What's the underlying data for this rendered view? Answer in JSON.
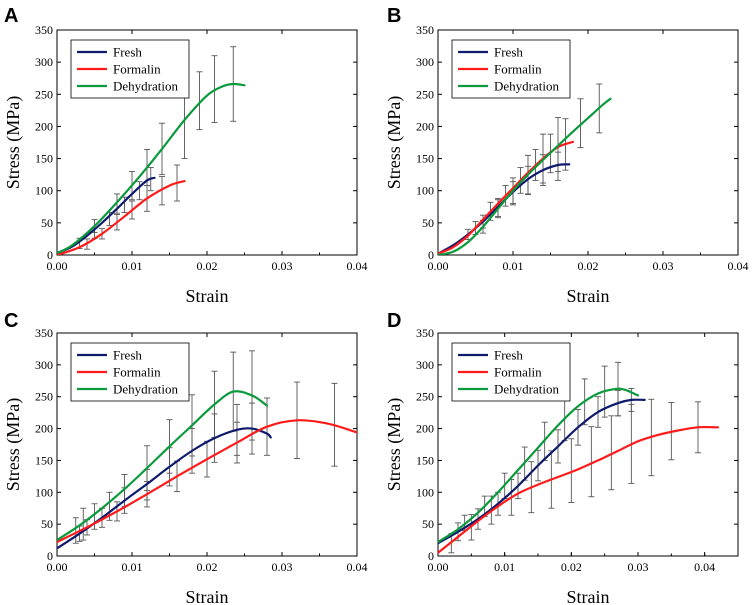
{
  "colors": {
    "Fresh": "#0f1a6e",
    "Formalin": "#ff1a1a",
    "Dehydration": "#0a9a3c"
  },
  "chart_data": [
    {
      "panel": "A",
      "type": "line",
      "xlabel": "Strain",
      "ylabel": "Stress (MPa)",
      "xlim": [
        0,
        0.04
      ],
      "ylim": [
        0,
        350
      ],
      "xticks": [
        "0.00",
        "0.01",
        "0.02",
        "0.03",
        "0.04"
      ],
      "yticks": [
        "0",
        "50",
        "100",
        "150",
        "200",
        "250",
        "300",
        "350"
      ],
      "legend": [
        "Fresh",
        "Formalin",
        "Dehydration"
      ],
      "series": [
        {
          "name": "Fresh",
          "x": [
            0,
            0.002,
            0.004,
            0.006,
            0.008,
            0.01,
            0.012,
            0.013
          ],
          "y": [
            3,
            13,
            30,
            50,
            72,
            95,
            116,
            120
          ],
          "errors": [
            [
              0.003,
              18,
              8
            ],
            [
              0.005,
              34,
              8
            ],
            [
              0.007,
              56,
              10
            ],
            [
              0.009,
              78,
              12
            ],
            [
              0.011,
              100,
              14
            ],
            [
              0.0125,
              118,
              18
            ]
          ]
        },
        {
          "name": "Formalin",
          "x": [
            0,
            0.003,
            0.006,
            0.009,
            0.012,
            0.015,
            0.017
          ],
          "y": [
            0,
            12,
            33,
            60,
            88,
            108,
            115
          ],
          "errors": [
            [
              0.004,
              17,
              8
            ],
            [
              0.006,
              33,
              8
            ],
            [
              0.008,
              51,
              12
            ],
            [
              0.01,
              70,
              14
            ],
            [
              0.012,
              88,
              20
            ],
            [
              0.014,
              100,
              22
            ],
            [
              0.016,
              112,
              28
            ]
          ]
        },
        {
          "name": "Dehydration",
          "x": [
            0,
            0.002,
            0.005,
            0.008,
            0.011,
            0.014,
            0.017,
            0.02,
            0.022,
            0.0235,
            0.025
          ],
          "y": [
            3,
            15,
            45,
            82,
            122,
            165,
            210,
            248,
            262,
            266,
            264
          ],
          "errors": [
            [
              0.005,
              45,
              10
            ],
            [
              0.008,
              80,
              15
            ],
            [
              0.01,
              108,
              22
            ],
            [
              0.012,
              136,
              28
            ],
            [
              0.014,
              165,
              40
            ],
            [
              0.017,
              205,
              55
            ],
            [
              0.019,
              240,
              45
            ],
            [
              0.021,
              258,
              52
            ],
            [
              0.0235,
              266,
              58
            ]
          ]
        }
      ]
    },
    {
      "panel": "B",
      "type": "line",
      "xlabel": "Strain",
      "ylabel": "Stress (MPa)",
      "xlim": [
        0,
        0.04
      ],
      "ylim": [
        0,
        350
      ],
      "xticks": [
        "0.00",
        "0.01",
        "0.02",
        "0.03",
        "0.04"
      ],
      "yticks": [
        "0",
        "50",
        "100",
        "150",
        "200",
        "250",
        "300",
        "350"
      ],
      "legend": [
        "Fresh",
        "Formalin",
        "Dehydration"
      ],
      "series": [
        {
          "name": "Fresh",
          "x": [
            0,
            0.002,
            0.004,
            0.006,
            0.008,
            0.01,
            0.012,
            0.014,
            0.016,
            0.0175
          ],
          "y": [
            2,
            15,
            32,
            52,
            75,
            98,
            118,
            132,
            140,
            141
          ],
          "errors": [
            [
              0.004,
              32,
              8
            ],
            [
              0.006,
              52,
              10
            ],
            [
              0.008,
              74,
              14
            ],
            [
              0.01,
              96,
              18
            ],
            [
              0.012,
              116,
              22
            ],
            [
              0.014,
              132,
              24
            ],
            [
              0.016,
              138,
              22
            ]
          ]
        },
        {
          "name": "Formalin",
          "x": [
            0,
            0.002,
            0.004,
            0.006,
            0.008,
            0.01,
            0.012,
            0.014,
            0.016,
            0.018
          ],
          "y": [
            2,
            12,
            30,
            55,
            80,
            104,
            128,
            150,
            168,
            176
          ],
          "errors": [
            [
              0.005,
              42,
              10
            ],
            [
              0.007,
              68,
              14
            ],
            [
              0.009,
              92,
              16
            ],
            [
              0.011,
              116,
              20
            ],
            [
              0.013,
              140,
              24
            ],
            [
              0.015,
              158,
              30
            ],
            [
              0.017,
              172,
              40
            ]
          ]
        },
        {
          "name": "Dehydration",
          "x": [
            0,
            0.002,
            0.004,
            0.006,
            0.008,
            0.01,
            0.012,
            0.014,
            0.016,
            0.018,
            0.02,
            0.022,
            0.023
          ],
          "y": [
            0,
            5,
            20,
            44,
            72,
            100,
            125,
            148,
            170,
            192,
            213,
            234,
            243
          ],
          "errors": [
            [
              0.006,
              44,
              10
            ],
            [
              0.008,
              72,
              14
            ],
            [
              0.01,
              100,
              20
            ],
            [
              0.012,
              125,
              30
            ],
            [
              0.014,
              150,
              38
            ],
            [
              0.016,
              172,
              42
            ],
            [
              0.019,
              205,
              38
            ],
            [
              0.0215,
              228,
              38
            ]
          ]
        }
      ]
    },
    {
      "panel": "C",
      "type": "line",
      "xlabel": "Strain",
      "ylabel": "Stress (MPa)",
      "xlim": [
        0,
        0.04
      ],
      "ylim": [
        0,
        350
      ],
      "xticks": [
        "0.00",
        "0.01",
        "0.02",
        "0.03",
        "0.04"
      ],
      "yticks": [
        "0",
        "50",
        "100",
        "150",
        "200",
        "250",
        "300",
        "350"
      ],
      "legend": [
        "Fresh",
        "Formalin",
        "Dehydration"
      ],
      "series": [
        {
          "name": "Fresh",
          "x": [
            0,
            0.003,
            0.006,
            0.009,
            0.012,
            0.015,
            0.018,
            0.021,
            0.024,
            0.026,
            0.028,
            0.0285
          ],
          "y": [
            12,
            35,
            60,
            87,
            113,
            140,
            165,
            185,
            198,
            200,
            192,
            186
          ],
          "errors": [
            [
              0.003,
              35,
              12
            ],
            [
              0.006,
              60,
              15
            ],
            [
              0.009,
              87,
              20
            ],
            [
              0.012,
              112,
              24
            ],
            [
              0.015,
              140,
              30
            ],
            [
              0.018,
              165,
              35
            ],
            [
              0.021,
              185,
              38
            ],
            [
              0.024,
              198,
              40
            ],
            [
              0.026,
              200,
              40
            ]
          ]
        },
        {
          "name": "Formalin",
          "x": [
            0,
            0.004,
            0.008,
            0.012,
            0.016,
            0.02,
            0.024,
            0.028,
            0.032,
            0.036,
            0.04
          ],
          "y": [
            22,
            45,
            70,
            97,
            125,
            152,
            178,
            203,
            213,
            208,
            194
          ],
          "errors": [
            [
              0.004,
              45,
              12
            ],
            [
              0.008,
              70,
              15
            ],
            [
              0.012,
              97,
              20
            ],
            [
              0.016,
              125,
              24
            ],
            [
              0.02,
              152,
              28
            ],
            [
              0.024,
              178,
              32
            ],
            [
              0.028,
              203,
              45
            ],
            [
              0.032,
              213,
              60
            ],
            [
              0.037,
              206,
              65
            ]
          ]
        },
        {
          "name": "Dehydration",
          "x": [
            0,
            0.003,
            0.006,
            0.009,
            0.012,
            0.015,
            0.018,
            0.021,
            0.0235,
            0.026,
            0.028
          ],
          "y": [
            25,
            48,
            75,
            105,
            138,
            172,
            205,
            238,
            258,
            252,
            236
          ],
          "errors": [
            [
              0.0025,
              40,
              20
            ],
            [
              0.0035,
              50,
              25
            ],
            [
              0.005,
              62,
              20
            ],
            [
              0.007,
              78,
              22
            ],
            [
              0.009,
              103,
              25
            ],
            [
              0.012,
              138,
              35
            ],
            [
              0.015,
              172,
              42
            ],
            [
              0.018,
              205,
              48
            ],
            [
              0.021,
              238,
              52
            ],
            [
              0.0235,
              258,
              62
            ],
            [
              0.026,
              252,
              70
            ]
          ]
        }
      ]
    },
    {
      "panel": "D",
      "type": "line",
      "xlabel": "Strain",
      "ylabel": "Stress (MPa)",
      "xlim": [
        0,
        0.045
      ],
      "ylim": [
        0,
        350
      ],
      "xticks": [
        "0.00",
        "0.01",
        "0.02",
        "0.03",
        "0.04"
      ],
      "yticks": [
        "0",
        "50",
        "100",
        "150",
        "200",
        "250",
        "300",
        "350"
      ],
      "legend": [
        "Fresh",
        "Formalin",
        "Dehydration"
      ],
      "series": [
        {
          "name": "Fresh",
          "x": [
            0,
            0.003,
            0.006,
            0.009,
            0.012,
            0.015,
            0.018,
            0.021,
            0.024,
            0.027,
            0.029,
            0.031
          ],
          "y": [
            20,
            38,
            58,
            82,
            110,
            142,
            172,
            202,
            226,
            240,
            245,
            245
          ],
          "errors": [
            [
              0.003,
              38,
              14
            ],
            [
              0.006,
              58,
              16
            ],
            [
              0.009,
              82,
              18
            ],
            [
              0.012,
              110,
              20
            ],
            [
              0.015,
              142,
              24
            ],
            [
              0.018,
              172,
              26
            ],
            [
              0.021,
              202,
              28
            ],
            [
              0.024,
              226,
              24
            ],
            [
              0.027,
              240,
              20
            ],
            [
              0.029,
              245,
              18
            ]
          ]
        },
        {
          "name": "Formalin",
          "x": [
            0,
            0.003,
            0.006,
            0.009,
            0.012,
            0.015,
            0.018,
            0.021,
            0.024,
            0.027,
            0.03,
            0.033,
            0.036,
            0.039,
            0.042
          ],
          "y": [
            5,
            30,
            55,
            78,
            98,
            112,
            124,
            136,
            150,
            165,
            180,
            190,
            197,
            202,
            202
          ],
          "errors": [
            [
              0.002,
              20,
              15
            ],
            [
              0.005,
              45,
              20
            ],
            [
              0.008,
              72,
              22
            ],
            [
              0.011,
              92,
              28
            ],
            [
              0.014,
              108,
              40
            ],
            [
              0.017,
              120,
              45
            ],
            [
              0.02,
              134,
              50
            ],
            [
              0.023,
              148,
              55
            ],
            [
              0.026,
              162,
              58
            ],
            [
              0.029,
              176,
              62
            ],
            [
              0.032,
              186,
              60
            ],
            [
              0.035,
              196,
              45
            ],
            [
              0.039,
              202,
              40
            ]
          ]
        },
        {
          "name": "Dehydration",
          "x": [
            0,
            0.003,
            0.006,
            0.009,
            0.012,
            0.015,
            0.018,
            0.021,
            0.024,
            0.0265,
            0.028,
            0.03
          ],
          "y": [
            22,
            42,
            68,
            100,
            135,
            170,
            205,
            235,
            255,
            262,
            261,
            252
          ],
          "errors": [
            [
              0.004,
              52,
              12
            ],
            [
              0.007,
              78,
              16
            ],
            [
              0.01,
              110,
              20
            ],
            [
              0.013,
              145,
              26
            ],
            [
              0.016,
              180,
              30
            ],
            [
              0.019,
              215,
              34
            ],
            [
              0.022,
              242,
              36
            ],
            [
              0.025,
              258,
              40
            ],
            [
              0.027,
              262,
              42
            ]
          ]
        }
      ]
    }
  ]
}
